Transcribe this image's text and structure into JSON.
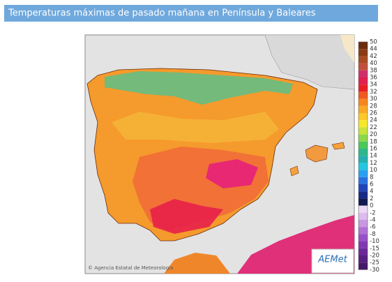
{
  "header": {
    "title": "Temperaturas máximas de pasado mañana en Península y Baleares"
  },
  "map": {
    "copyright": "© Agencia Estatal de Meteorología",
    "logo": "AEMet"
  },
  "legend": {
    "labels": [
      "50",
      "44",
      "42",
      "40",
      "38",
      "36",
      "34",
      "32",
      "30",
      "28",
      "26",
      "24",
      "22",
      "20",
      "18",
      "16",
      "14",
      "12",
      "10",
      "8",
      "6",
      "4",
      "2",
      "0",
      "-2",
      "-4",
      "-6",
      "-8",
      "-10",
      "-15",
      "-20",
      "-25",
      "-30"
    ]
  }
}
